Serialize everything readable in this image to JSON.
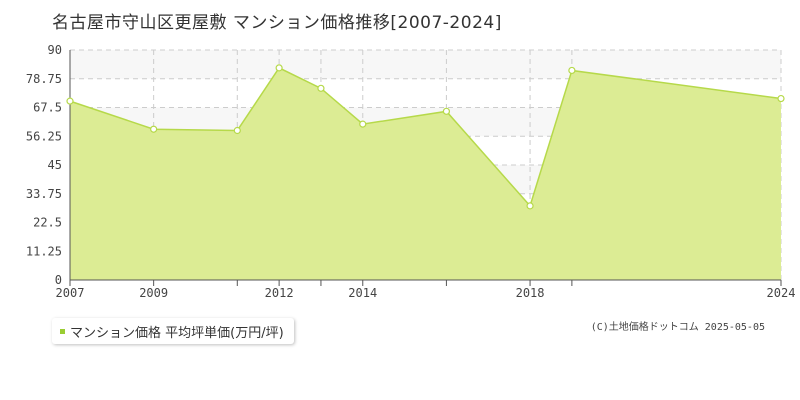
{
  "title": "名古屋市守山区更屋敷 マンション価格推移[2007-2024]",
  "legend": {
    "label": "マンション価格 平均坪単価(万円/坪)",
    "color": "#9acd32"
  },
  "copyright": "(C)土地価格ドットコム 2025-05-05",
  "colors": {
    "fill": "#dcec94",
    "line": "#b6d94a",
    "grid": "#cccccc",
    "band": "#f7f7f7"
  },
  "chart_data": {
    "type": "area",
    "x": [
      2007,
      2009,
      2011,
      2012,
      2013,
      2014,
      2016,
      2018,
      2019,
      2024
    ],
    "series": [
      {
        "name": "マンション価格 平均坪単価(万円/坪)",
        "values": [
          70,
          59,
          58.5,
          83,
          75,
          61,
          66,
          29,
          82,
          71
        ]
      }
    ],
    "xticks": [
      2007,
      2009,
      2012,
      2014,
      2018,
      2024
    ],
    "xlim": [
      2007,
      2024
    ],
    "yticks": [
      0,
      11.25,
      22.5,
      33.75,
      45,
      56.25,
      67.5,
      78.75,
      90
    ],
    "ylim": [
      0,
      90
    ],
    "grid": true,
    "legend_position": "bottom-left"
  }
}
